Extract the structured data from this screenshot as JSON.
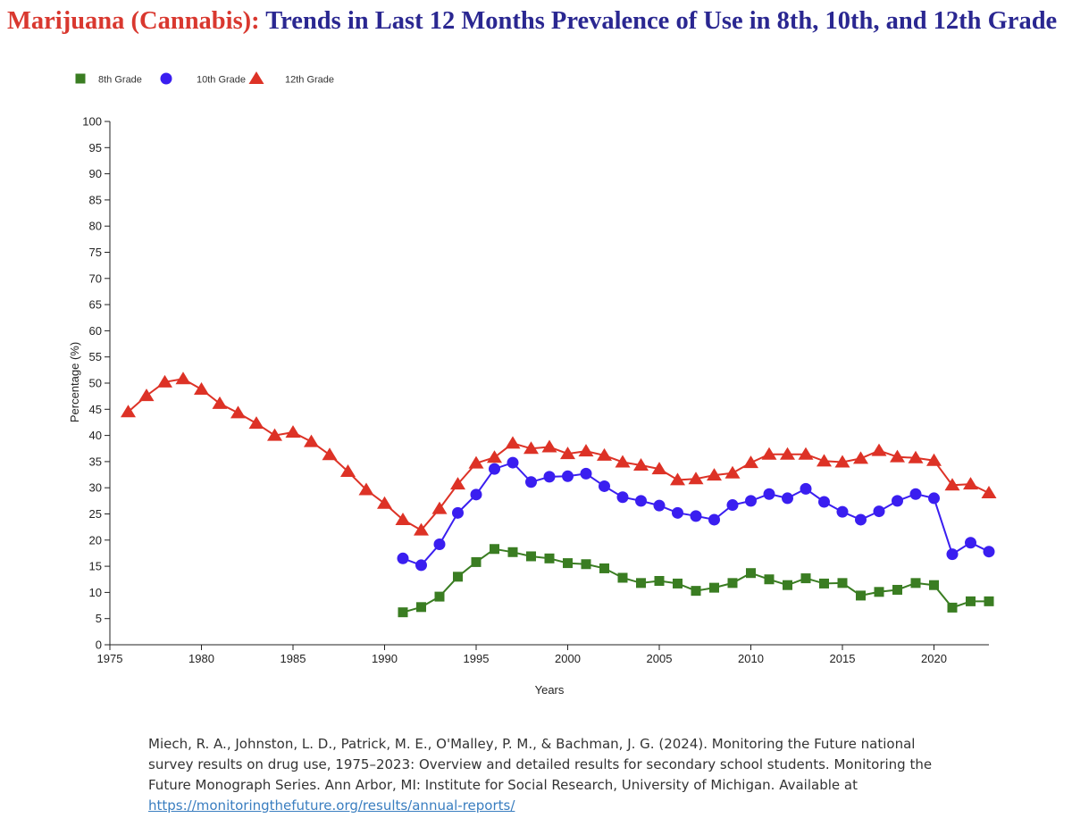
{
  "title": {
    "prefix": "Marijuana (Cannabis):",
    "main": "Trends in Last 12 Months Prevalence of Use in 8th, 10th, and 12th Grade"
  },
  "colors": {
    "title_prefix": "#d9382f",
    "title_main": "#2a2791",
    "grade8": "#3a7d22",
    "grade10": "#3a1ef0",
    "grade12": "#dd3226",
    "link": "#3a7ec0"
  },
  "chart_data": {
    "type": "line",
    "xlabel": "Years",
    "ylabel": "Percentage (%)",
    "xlim": [
      1975,
      2023
    ],
    "ylim": [
      0,
      100
    ],
    "x_ticks": [
      1975,
      1980,
      1985,
      1990,
      1995,
      2000,
      2005,
      2010,
      2015,
      2020
    ],
    "y_ticks": [
      0,
      5,
      10,
      15,
      20,
      25,
      30,
      35,
      40,
      45,
      50,
      55,
      60,
      65,
      70,
      75,
      80,
      85,
      90,
      95,
      100
    ],
    "grid": false,
    "legend_position": "top-left",
    "series": [
      {
        "name": "8th Grade",
        "marker": "square",
        "color": "#3a7d22",
        "x": [
          1991,
          1992,
          1993,
          1994,
          1995,
          1996,
          1997,
          1998,
          1999,
          2000,
          2001,
          2002,
          2003,
          2004,
          2005,
          2006,
          2007,
          2008,
          2009,
          2010,
          2011,
          2012,
          2013,
          2014,
          2015,
          2016,
          2017,
          2018,
          2019,
          2020,
          2021,
          2022,
          2023
        ],
        "values": [
          6.2,
          7.2,
          9.2,
          13.0,
          15.8,
          18.3,
          17.7,
          16.9,
          16.5,
          15.6,
          15.4,
          14.6,
          12.8,
          11.8,
          12.2,
          11.7,
          10.3,
          10.9,
          11.8,
          13.7,
          12.5,
          11.4,
          12.7,
          11.7,
          11.8,
          9.4,
          10.1,
          10.5,
          11.8,
          11.4,
          7.1,
          8.3,
          8.3
        ]
      },
      {
        "name": "10th Grade",
        "marker": "circle",
        "color": "#3a1ef0",
        "x": [
          1991,
          1992,
          1993,
          1994,
          1995,
          1996,
          1997,
          1998,
          1999,
          2000,
          2001,
          2002,
          2003,
          2004,
          2005,
          2006,
          2007,
          2008,
          2009,
          2010,
          2011,
          2012,
          2013,
          2014,
          2015,
          2016,
          2017,
          2018,
          2019,
          2020,
          2021,
          2022,
          2023
        ],
        "values": [
          16.5,
          15.2,
          19.2,
          25.2,
          28.7,
          33.6,
          34.8,
          31.1,
          32.1,
          32.2,
          32.7,
          30.3,
          28.2,
          27.5,
          26.6,
          25.2,
          24.6,
          23.9,
          26.7,
          27.5,
          28.8,
          28.0,
          29.8,
          27.3,
          25.4,
          23.9,
          25.5,
          27.5,
          28.8,
          28.0,
          17.3,
          19.5,
          17.8
        ]
      },
      {
        "name": "12th Grade",
        "marker": "triangle",
        "color": "#dd3226",
        "x": [
          1976,
          1977,
          1978,
          1979,
          1980,
          1981,
          1982,
          1983,
          1984,
          1985,
          1986,
          1987,
          1988,
          1989,
          1990,
          1991,
          1992,
          1993,
          1994,
          1995,
          1996,
          1997,
          1998,
          1999,
          2000,
          2001,
          2002,
          2003,
          2004,
          2005,
          2006,
          2007,
          2008,
          2009,
          2010,
          2011,
          2012,
          2013,
          2014,
          2015,
          2016,
          2017,
          2018,
          2019,
          2020,
          2021,
          2022,
          2023
        ],
        "values": [
          44.5,
          47.6,
          50.2,
          50.8,
          48.8,
          46.1,
          44.3,
          42.3,
          40.0,
          40.6,
          38.8,
          36.3,
          33.1,
          29.6,
          27.0,
          23.9,
          21.9,
          26.0,
          30.7,
          34.7,
          35.8,
          38.5,
          37.5,
          37.8,
          36.5,
          37.0,
          36.2,
          34.9,
          34.3,
          33.6,
          31.5,
          31.7,
          32.4,
          32.8,
          34.8,
          36.4,
          36.4,
          36.4,
          35.1,
          34.9,
          35.6,
          37.1,
          35.9,
          35.7,
          35.2,
          30.5,
          30.7,
          29.0
        ]
      }
    ]
  },
  "citation": {
    "text": "Miech, R. A., Johnston, L. D., Patrick, M. E., O'Malley, P. M., & Bachman, J. G. (2024). Monitoring the Future national survey results on drug use, 1975–2023: Overview and detailed results for secondary school students. Monitoring the Future Monograph Series. Ann Arbor, MI: Institute for Social Research, University of Michigan. Available at",
    "link_text": "https://monitoringthefuture.org/results/annual-reports/"
  }
}
